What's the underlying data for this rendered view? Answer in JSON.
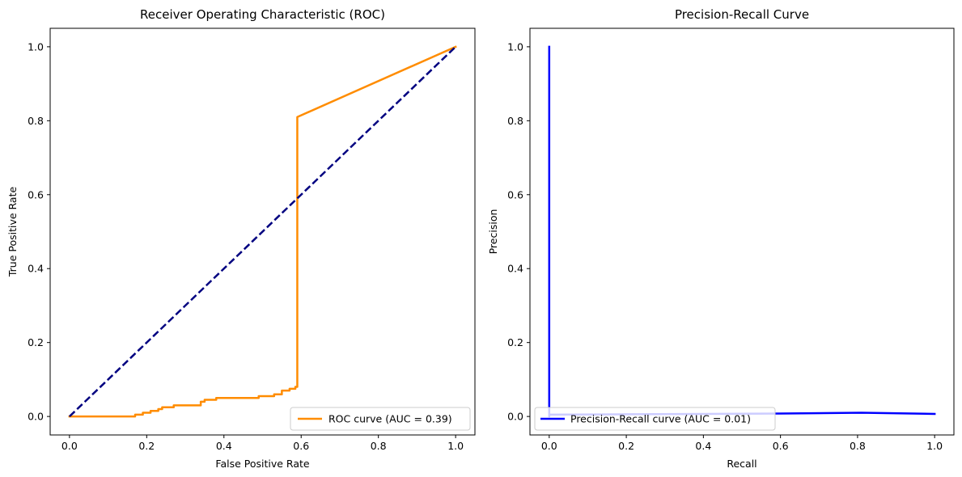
{
  "chart_data": [
    {
      "type": "line",
      "title": "Receiver Operating Characteristic (ROC)",
      "xlabel": "False Positive Rate",
      "ylabel": "True Positive Rate",
      "xlim": [
        -0.05,
        1.05
      ],
      "ylim": [
        -0.05,
        1.05
      ],
      "xticks": [
        "0.0",
        "0.2",
        "0.4",
        "0.6",
        "0.8",
        "1.0"
      ],
      "yticks": [
        "0.0",
        "0.2",
        "0.4",
        "0.6",
        "0.8",
        "1.0"
      ],
      "grid": false,
      "legend_position": "lower-right",
      "series": [
        {
          "name": "ROC curve (AUC = 0.39)",
          "color": "#ff8c00",
          "style": "solid",
          "x": [
            0.0,
            0.17,
            0.17,
            0.19,
            0.19,
            0.21,
            0.21,
            0.23,
            0.23,
            0.24,
            0.24,
            0.27,
            0.27,
            0.34,
            0.34,
            0.35,
            0.35,
            0.38,
            0.38,
            0.49,
            0.49,
            0.53,
            0.53,
            0.55,
            0.55,
            0.57,
            0.57,
            0.585,
            0.585,
            0.59,
            0.59,
            1.0
          ],
          "y": [
            0.0,
            0.0,
            0.005,
            0.005,
            0.01,
            0.01,
            0.015,
            0.015,
            0.02,
            0.02,
            0.025,
            0.025,
            0.03,
            0.03,
            0.04,
            0.04,
            0.045,
            0.045,
            0.05,
            0.05,
            0.055,
            0.055,
            0.06,
            0.06,
            0.07,
            0.07,
            0.075,
            0.075,
            0.08,
            0.08,
            0.81,
            1.0
          ]
        },
        {
          "name": "",
          "color": "#000080",
          "style": "dashed",
          "x": [
            0.0,
            1.0
          ],
          "y": [
            0.0,
            1.0
          ]
        }
      ]
    },
    {
      "type": "line",
      "title": "Precision-Recall Curve",
      "xlabel": "Recall",
      "ylabel": "Precision",
      "xlim": [
        -0.05,
        1.05
      ],
      "ylim": [
        -0.05,
        1.05
      ],
      "xticks": [
        "0.0",
        "0.2",
        "0.4",
        "0.6",
        "0.8",
        "1.0"
      ],
      "yticks": [
        "0.0",
        "0.2",
        "0.4",
        "0.6",
        "0.8",
        "1.0"
      ],
      "grid": false,
      "legend_position": "lower-left",
      "series": [
        {
          "name": "Precision-Recall curve (AUC = 0.01)",
          "color": "#0000ff",
          "style": "solid",
          "x": [
            0.0,
            0.0,
            0.0,
            0.2,
            0.4,
            0.6,
            0.81,
            1.0
          ],
          "y": [
            1.0,
            0.0,
            0.005,
            0.006,
            0.007,
            0.008,
            0.01,
            0.007
          ]
        }
      ]
    }
  ]
}
